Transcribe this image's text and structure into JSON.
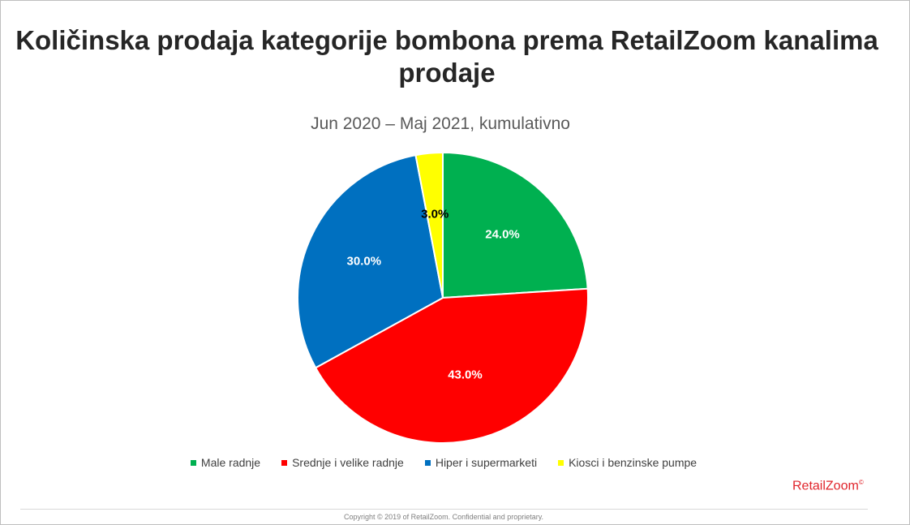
{
  "chart_data": {
    "type": "pie",
    "title": "Količinska prodaja kategorije bombona prema RetailZoom kanalima prodaje",
    "subtitle": "Jun 2020 – Maj 2021, kumulativno",
    "categories": [
      "Male radnje",
      "Srednje i velike radnje",
      "Hiper i supermarketi",
      "Kiosci i benzinske pumpe"
    ],
    "values": [
      24.0,
      43.0,
      30.0,
      3.0
    ],
    "labels": [
      "24.0%",
      "43.0%",
      "30.0%",
      "3.0%"
    ],
    "colors": [
      "#00b050",
      "#ff0000",
      "#0070c0",
      "#ffff00"
    ],
    "label_colors": [
      "#ffffff",
      "#ffffff",
      "#ffffff",
      "#000000"
    ],
    "legend_position": "bottom"
  },
  "brand": {
    "name": "RetailZoom",
    "mark": "©"
  },
  "footer": {
    "copyright": "Copyright © 2019 of RetailZoom. Confidential and proprietary."
  }
}
